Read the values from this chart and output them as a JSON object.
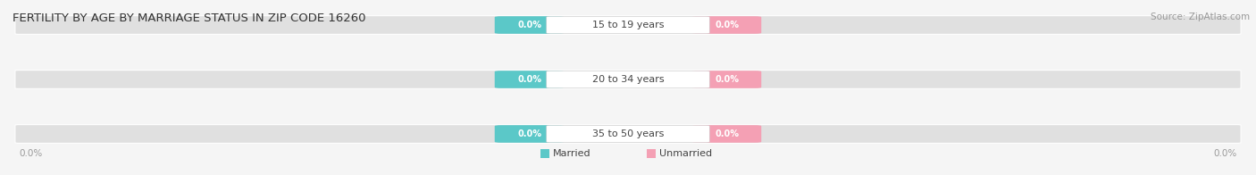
{
  "title": "FERTILITY BY AGE BY MARRIAGE STATUS IN ZIP CODE 16260",
  "source": "Source: ZipAtlas.com",
  "age_groups": [
    "15 to 19 years",
    "20 to 34 years",
    "35 to 50 years"
  ],
  "married_values": [
    0.0,
    0.0,
    0.0
  ],
  "unmarried_values": [
    0.0,
    0.0,
    0.0
  ],
  "married_color": "#5bc8c8",
  "unmarried_color": "#f4a0b4",
  "bar_bg_color": "#e0e0e0",
  "background_color": "#f5f5f5",
  "title_fontsize": 9.5,
  "source_fontsize": 7.5,
  "bar_label_color_married": "white",
  "bar_label_color_unmarried": "white",
  "center_label_color": "#444444",
  "axis_tick_color": "#999999",
  "left_axis_label": "0.0%",
  "right_axis_label": "0.0%"
}
